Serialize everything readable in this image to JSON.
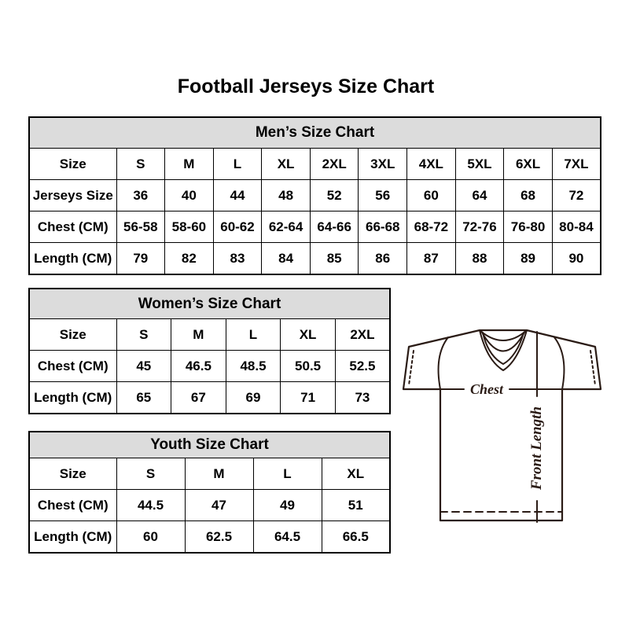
{
  "page_title": "Football Jerseys Size Chart",
  "tables": [
    {
      "id": "mens",
      "title": "Men’s Size Chart",
      "rows": [
        [
          "Size",
          "S",
          "M",
          "L",
          "XL",
          "2XL",
          "3XL",
          "4XL",
          "5XL",
          "6XL",
          "7XL"
        ],
        [
          "Jerseys Size",
          "36",
          "40",
          "44",
          "48",
          "52",
          "56",
          "60",
          "64",
          "68",
          "72"
        ],
        [
          "Chest (CM)",
          "56-58",
          "58-60",
          "60-62",
          "62-64",
          "64-66",
          "66-68",
          "68-72",
          "72-76",
          "76-80",
          "80-84"
        ],
        [
          "Length (CM)",
          "79",
          "82",
          "83",
          "84",
          "85",
          "86",
          "87",
          "88",
          "89",
          "90"
        ]
      ]
    },
    {
      "id": "womens",
      "title": "Women’s Size Chart",
      "rows": [
        [
          "Size",
          "S",
          "M",
          "L",
          "XL",
          "2XL"
        ],
        [
          "Chest (CM)",
          "45",
          "46.5",
          "48.5",
          "50.5",
          "52.5"
        ],
        [
          "Length (CM)",
          "65",
          "67",
          "69",
          "71",
          "73"
        ]
      ]
    },
    {
      "id": "youth",
      "title": "Youth Size Chart",
      "rows": [
        [
          "Size",
          "S",
          "M",
          "L",
          "XL"
        ],
        [
          "Chest (CM)",
          "44.5",
          "47",
          "49",
          "51"
        ],
        [
          "Length (CM)",
          "60",
          "62.5",
          "64.5",
          "66.5"
        ]
      ]
    }
  ],
  "diagram": {
    "chest_label": "Chest",
    "front_length_label": "Front Length"
  },
  "colors": {
    "header_bg": "#dcdcdc",
    "table_border": "#000000",
    "diagram_line": "#2a1b15"
  }
}
